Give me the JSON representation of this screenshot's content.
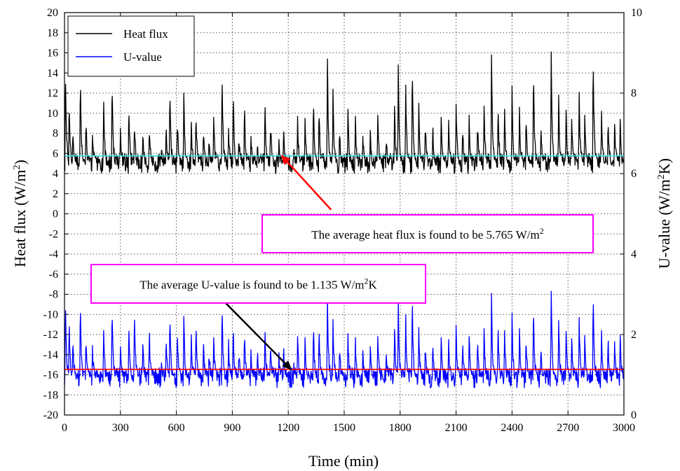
{
  "chart_data": {
    "type": "line",
    "title": "",
    "xlabel": "Time (min)",
    "ylabel_left": {
      "text": "Heat flux (W/m",
      "sup": "2",
      "end": ")"
    },
    "ylabel_right": {
      "text": "U-value (W/m",
      "sup": "2",
      "end": "K)"
    },
    "xlim": [
      0,
      3000
    ],
    "ylim_left": [
      -20,
      20
    ],
    "ylim_right": [
      0,
      10
    ],
    "x_ticks": [
      0,
      300,
      600,
      900,
      1200,
      1500,
      1800,
      2100,
      2400,
      2700,
      3000
    ],
    "y_left_ticks": [
      -20,
      -18,
      -16,
      -14,
      -12,
      -10,
      -8,
      -6,
      -4,
      -2,
      0,
      2,
      4,
      6,
      8,
      10,
      12,
      14,
      16,
      18,
      20
    ],
    "y_right_ticks": [
      0,
      2,
      4,
      6,
      8,
      10
    ],
    "grid": true,
    "legend_position": "top-left",
    "series": [
      {
        "name": "Heat flux",
        "axis": "left",
        "color": "#000000",
        "baseline": 5.0,
        "noise": 1.0,
        "min_value": 3.0,
        "spikes": [
          {
            "x": 5,
            "y": 14.6
          },
          {
            "x": 25,
            "y": 11.8
          },
          {
            "x": 45,
            "y": 8.5
          },
          {
            "x": 85,
            "y": 13.8
          },
          {
            "x": 115,
            "y": 9.5
          },
          {
            "x": 150,
            "y": 7.8
          },
          {
            "x": 210,
            "y": 11.1
          },
          {
            "x": 255,
            "y": 13.8
          },
          {
            "x": 300,
            "y": 8.5
          },
          {
            "x": 345,
            "y": 10.9
          },
          {
            "x": 375,
            "y": 9.5
          },
          {
            "x": 420,
            "y": 7.6
          },
          {
            "x": 455,
            "y": 8.8
          },
          {
            "x": 520,
            "y": 6.3
          },
          {
            "x": 545,
            "y": 8.9
          },
          {
            "x": 565,
            "y": 12.8
          },
          {
            "x": 605,
            "y": 9.7
          },
          {
            "x": 640,
            "y": 12.0
          },
          {
            "x": 680,
            "y": 9.1
          },
          {
            "x": 705,
            "y": 10.4
          },
          {
            "x": 745,
            "y": 8.4
          },
          {
            "x": 775,
            "y": 7.9
          },
          {
            "x": 800,
            "y": 9.6
          },
          {
            "x": 845,
            "y": 14.1
          },
          {
            "x": 880,
            "y": 8.5
          },
          {
            "x": 905,
            "y": 12.4
          },
          {
            "x": 935,
            "y": 7.9
          },
          {
            "x": 965,
            "y": 10.9
          },
          {
            "x": 1000,
            "y": 7.7
          },
          {
            "x": 1035,
            "y": 7.3
          },
          {
            "x": 1075,
            "y": 11.1
          },
          {
            "x": 1105,
            "y": 9.4
          },
          {
            "x": 1150,
            "y": 7.4
          },
          {
            "x": 1175,
            "y": 8.3
          },
          {
            "x": 1230,
            "y": 6.4
          },
          {
            "x": 1250,
            "y": 9.7
          },
          {
            "x": 1290,
            "y": 9.5
          },
          {
            "x": 1335,
            "y": 11.6
          },
          {
            "x": 1365,
            "y": 11.1
          },
          {
            "x": 1410,
            "y": 15.4
          },
          {
            "x": 1440,
            "y": 12.4
          },
          {
            "x": 1475,
            "y": 8.6
          },
          {
            "x": 1520,
            "y": 10.4
          },
          {
            "x": 1560,
            "y": 9.7
          },
          {
            "x": 1600,
            "y": 7.7
          },
          {
            "x": 1640,
            "y": 8.3
          },
          {
            "x": 1680,
            "y": 9.8
          },
          {
            "x": 1725,
            "y": 7.3
          },
          {
            "x": 1770,
            "y": 10.7
          },
          {
            "x": 1790,
            "y": 14.8
          },
          {
            "x": 1830,
            "y": 12.8
          },
          {
            "x": 1865,
            "y": 15.4
          },
          {
            "x": 1900,
            "y": 11.0
          },
          {
            "x": 1935,
            "y": 9.3
          },
          {
            "x": 1975,
            "y": 8.9
          },
          {
            "x": 2020,
            "y": 9.6
          },
          {
            "x": 2060,
            "y": 9.3
          },
          {
            "x": 2100,
            "y": 10.9
          },
          {
            "x": 2135,
            "y": 8.6
          },
          {
            "x": 2170,
            "y": 9.8
          },
          {
            "x": 2215,
            "y": 9.5
          },
          {
            "x": 2250,
            "y": 10.7
          },
          {
            "x": 2290,
            "y": 15.8
          },
          {
            "x": 2325,
            "y": 11.0
          },
          {
            "x": 2360,
            "y": 10.4
          },
          {
            "x": 2400,
            "y": 12.7
          },
          {
            "x": 2440,
            "y": 10.6
          },
          {
            "x": 2475,
            "y": 9.9
          },
          {
            "x": 2515,
            "y": 15.1
          },
          {
            "x": 2555,
            "y": 8.6
          },
          {
            "x": 2610,
            "y": 16.1
          },
          {
            "x": 2650,
            "y": 11.8
          },
          {
            "x": 2690,
            "y": 10.3
          },
          {
            "x": 2720,
            "y": 9.4
          },
          {
            "x": 2760,
            "y": 12.1
          },
          {
            "x": 2790,
            "y": 9.8
          },
          {
            "x": 2835,
            "y": 15.9
          },
          {
            "x": 2880,
            "y": 10.2
          },
          {
            "x": 2915,
            "y": 9.5
          },
          {
            "x": 2950,
            "y": 8.9
          },
          {
            "x": 2980,
            "y": 9.4
          }
        ]
      },
      {
        "name": "U-value",
        "axis": "left",
        "color": "#0000ff",
        "baseline": -16.3,
        "noise": 1.0,
        "min_value": -17.8,
        "spikes": [
          {
            "x": 5,
            "y": -8.8
          },
          {
            "x": 25,
            "y": -10.5
          },
          {
            "x": 45,
            "y": -12.2
          },
          {
            "x": 85,
            "y": -8.4
          },
          {
            "x": 115,
            "y": -12.0
          },
          {
            "x": 150,
            "y": -13.1
          },
          {
            "x": 210,
            "y": -11.6
          },
          {
            "x": 255,
            "y": -8.6
          },
          {
            "x": 300,
            "y": -13.2
          },
          {
            "x": 345,
            "y": -11.2
          },
          {
            "x": 375,
            "y": -9.5
          },
          {
            "x": 420,
            "y": -13.0
          },
          {
            "x": 455,
            "y": -11.5
          },
          {
            "x": 520,
            "y": -14.8
          },
          {
            "x": 545,
            "y": -12.2
          },
          {
            "x": 565,
            "y": -9.8
          },
          {
            "x": 605,
            "y": -11.6
          },
          {
            "x": 640,
            "y": -10.2
          },
          {
            "x": 680,
            "y": -12.0
          },
          {
            "x": 705,
            "y": -11.1
          },
          {
            "x": 745,
            "y": -12.6
          },
          {
            "x": 775,
            "y": -13.5
          },
          {
            "x": 800,
            "y": -12.3
          },
          {
            "x": 845,
            "y": -8.9
          },
          {
            "x": 880,
            "y": -12.5
          },
          {
            "x": 905,
            "y": -10.6
          },
          {
            "x": 935,
            "y": -13.7
          },
          {
            "x": 965,
            "y": -11.6
          },
          {
            "x": 1000,
            "y": -13.5
          },
          {
            "x": 1035,
            "y": -13.6
          },
          {
            "x": 1075,
            "y": -11.3
          },
          {
            "x": 1105,
            "y": -12.5
          },
          {
            "x": 1150,
            "y": -13.8
          },
          {
            "x": 1175,
            "y": -13.1
          },
          {
            "x": 1230,
            "y": -14.8
          },
          {
            "x": 1250,
            "y": -12.2
          },
          {
            "x": 1290,
            "y": -12.3
          },
          {
            "x": 1335,
            "y": -11.0
          },
          {
            "x": 1365,
            "y": -11.3
          },
          {
            "x": 1410,
            "y": -8.2
          },
          {
            "x": 1440,
            "y": -10.5
          },
          {
            "x": 1475,
            "y": -13.1
          },
          {
            "x": 1520,
            "y": -11.9
          },
          {
            "x": 1560,
            "y": -12.3
          },
          {
            "x": 1600,
            "y": -13.6
          },
          {
            "x": 1640,
            "y": -13.2
          },
          {
            "x": 1680,
            "y": -12.2
          },
          {
            "x": 1725,
            "y": -14.0
          },
          {
            "x": 1770,
            "y": -11.5
          },
          {
            "x": 1790,
            "y": -8.5
          },
          {
            "x": 1830,
            "y": -10.0
          },
          {
            "x": 1865,
            "y": -8.2
          },
          {
            "x": 1900,
            "y": -11.3
          },
          {
            "x": 1935,
            "y": -12.6
          },
          {
            "x": 1975,
            "y": -12.7
          },
          {
            "x": 2020,
            "y": -12.3
          },
          {
            "x": 2060,
            "y": -12.5
          },
          {
            "x": 2100,
            "y": -11.1
          },
          {
            "x": 2135,
            "y": -13.0
          },
          {
            "x": 2170,
            "y": -12.2
          },
          {
            "x": 2215,
            "y": -12.4
          },
          {
            "x": 2250,
            "y": -11.4
          },
          {
            "x": 2290,
            "y": -7.9
          },
          {
            "x": 2325,
            "y": -11.2
          },
          {
            "x": 2360,
            "y": -11.6
          },
          {
            "x": 2400,
            "y": -9.9
          },
          {
            "x": 2440,
            "y": -11.4
          },
          {
            "x": 2475,
            "y": -11.8
          },
          {
            "x": 2515,
            "y": -8.4
          },
          {
            "x": 2555,
            "y": -13.1
          },
          {
            "x": 2610,
            "y": -7.7
          },
          {
            "x": 2650,
            "y": -10.6
          },
          {
            "x": 2690,
            "y": -11.7
          },
          {
            "x": 2720,
            "y": -12.4
          },
          {
            "x": 2760,
            "y": -10.3
          },
          {
            "x": 2790,
            "y": -12.1
          },
          {
            "x": 2835,
            "y": -7.8
          },
          {
            "x": 2880,
            "y": -11.6
          },
          {
            "x": 2915,
            "y": -12.2
          },
          {
            "x": 2950,
            "y": -12.7
          },
          {
            "x": 2980,
            "y": -12.1
          }
        ]
      }
    ],
    "reference_lines": [
      {
        "axis": "left",
        "value": 5.765,
        "color": "#40e0e8"
      },
      {
        "axis": "left",
        "value": -15.46,
        "color": "#ff0000"
      }
    ],
    "annotations": [
      {
        "text": "The average heat flux is found to be 5.765 W/m",
        "sup": "2",
        "end": "",
        "border_color": "#ff00ff",
        "arrow_color": "#ff0000",
        "arrow_target": {
          "x": 1165,
          "y": 5.765
        },
        "arrow_origin": {
          "x": 1430,
          "y": 0.4
        }
      },
      {
        "text": "The average U-value is found to be 1.135 W/m",
        "sup": "2",
        "end": "K",
        "border_color": "#ff00ff",
        "arrow_color": "#000000",
        "arrow_target": {
          "x": 1215,
          "y": -15.46
        },
        "arrow_origin": {
          "x": 850,
          "y": -8.6
        }
      }
    ]
  }
}
